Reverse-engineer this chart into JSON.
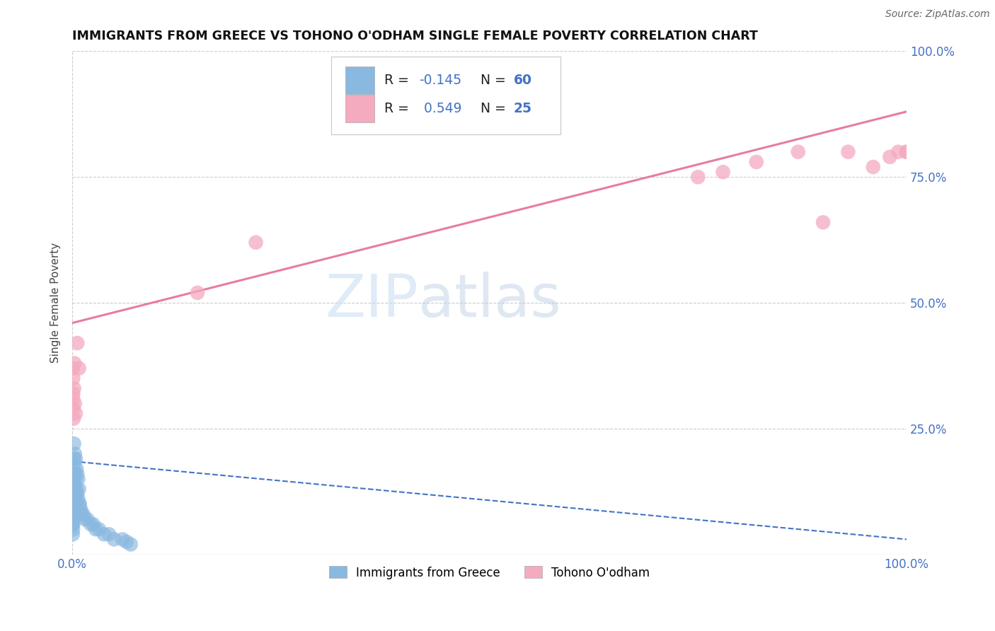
{
  "title": "IMMIGRANTS FROM GREECE VS TOHONO O'ODHAM SINGLE FEMALE POVERTY CORRELATION CHART",
  "source": "Source: ZipAtlas.com",
  "ylabel": "Single Female Poverty",
  "xlim": [
    0,
    1.0
  ],
  "ylim": [
    0,
    1.0
  ],
  "legend_label1": "Immigrants from Greece",
  "legend_label2": "Tohono O'odham",
  "blue_color": "#89b8e0",
  "pink_color": "#f4aabf",
  "blue_line_color": "#4472c4",
  "pink_line_color": "#e87ca0",
  "watermark_zip": "ZIP",
  "watermark_atlas": "atlas",
  "blue_scatter_x": [
    0.0005,
    0.0005,
    0.0005,
    0.0008,
    0.0008,
    0.0008,
    0.001,
    0.001,
    0.001,
    0.001,
    0.0012,
    0.0012,
    0.0012,
    0.0015,
    0.0015,
    0.0015,
    0.0015,
    0.002,
    0.002,
    0.002,
    0.002,
    0.002,
    0.002,
    0.0025,
    0.0025,
    0.0025,
    0.003,
    0.003,
    0.003,
    0.003,
    0.0035,
    0.0035,
    0.004,
    0.004,
    0.004,
    0.005,
    0.005,
    0.006,
    0.006,
    0.007,
    0.007,
    0.008,
    0.008,
    0.009,
    0.01,
    0.011,
    0.013,
    0.015,
    0.018,
    0.022,
    0.025,
    0.028,
    0.032,
    0.038,
    0.044,
    0.05,
    0.06,
    0.065,
    0.07
  ],
  "blue_scatter_y": [
    0.04,
    0.06,
    0.08,
    0.05,
    0.08,
    0.1,
    0.06,
    0.09,
    0.12,
    0.15,
    0.08,
    0.11,
    0.14,
    0.07,
    0.1,
    0.13,
    0.16,
    0.08,
    0.1,
    0.13,
    0.16,
    0.19,
    0.22,
    0.1,
    0.14,
    0.18,
    0.1,
    0.13,
    0.16,
    0.2,
    0.12,
    0.16,
    0.11,
    0.15,
    0.19,
    0.13,
    0.17,
    0.12,
    0.16,
    0.11,
    0.15,
    0.1,
    0.13,
    0.1,
    0.09,
    0.08,
    0.08,
    0.07,
    0.07,
    0.06,
    0.06,
    0.05,
    0.05,
    0.04,
    0.04,
    0.03,
    0.03,
    0.025,
    0.02
  ],
  "pink_scatter_x": [
    0.0005,
    0.0008,
    0.001,
    0.001,
    0.0012,
    0.0015,
    0.002,
    0.0025,
    0.003,
    0.004,
    0.006,
    0.008,
    0.15,
    0.22,
    0.75,
    0.78,
    0.82,
    0.87,
    0.9,
    0.93,
    0.96,
    0.98,
    0.99,
    1.0,
    1.0
  ],
  "pink_scatter_y": [
    0.37,
    0.31,
    0.35,
    0.32,
    0.29,
    0.27,
    0.33,
    0.38,
    0.3,
    0.28,
    0.42,
    0.37,
    0.52,
    0.62,
    0.75,
    0.76,
    0.78,
    0.8,
    0.66,
    0.8,
    0.77,
    0.79,
    0.8,
    0.8,
    0.8
  ],
  "pink_line_x": [
    0.0,
    1.0
  ],
  "pink_line_y": [
    0.46,
    0.88
  ],
  "blue_line_x": [
    0.0,
    1.0
  ],
  "blue_line_y": [
    0.185,
    0.03
  ]
}
